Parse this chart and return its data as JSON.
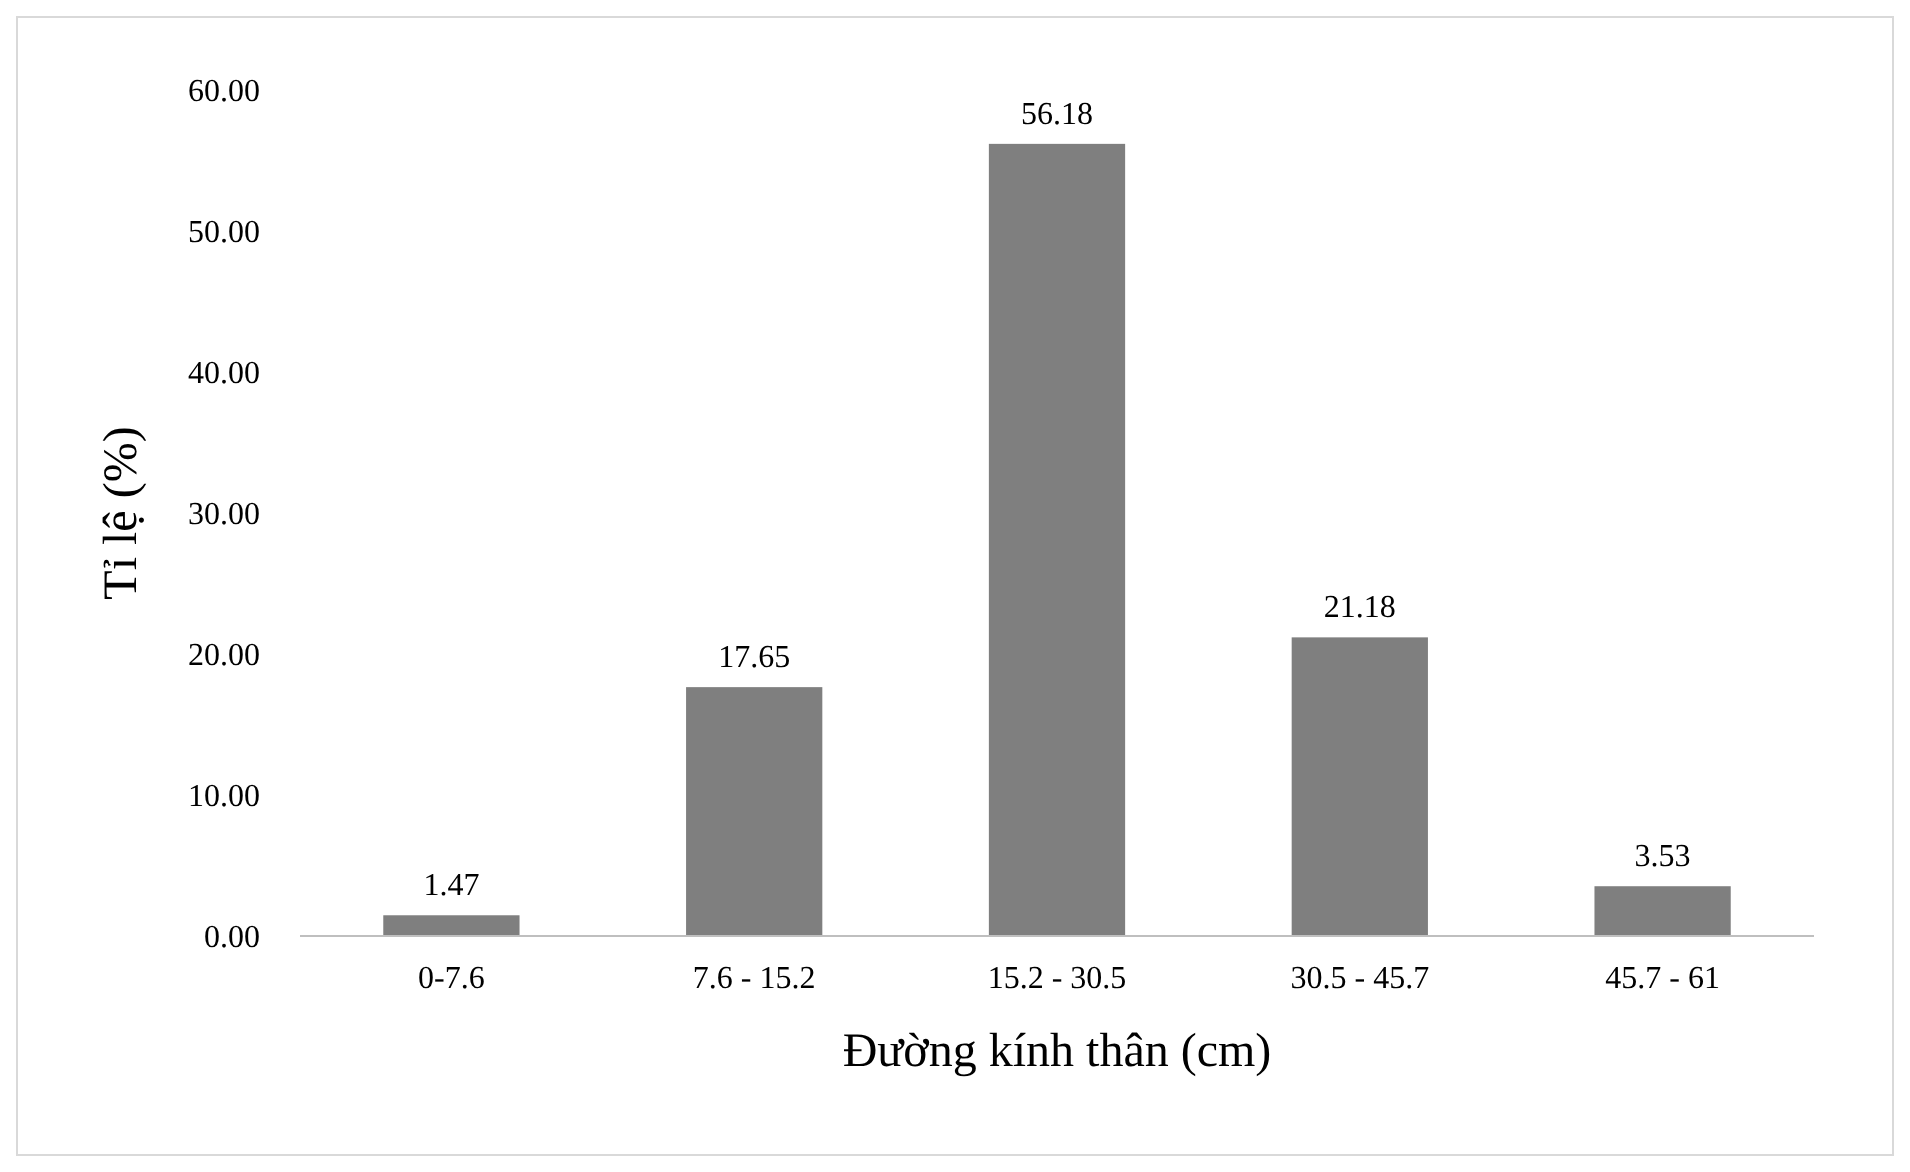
{
  "chart_data": {
    "type": "bar",
    "xlabel": "Đường kính thân (cm)",
    "ylabel": "Tỉ lệ (%)",
    "categories": [
      "0-7.6",
      "7.6 - 15.2",
      "15.2 - 30.5",
      "30.5 - 45.7",
      "45.7 - 61"
    ],
    "values": [
      1.47,
      17.65,
      56.18,
      21.18,
      3.53
    ],
    "color": "#7f7f7f",
    "data_labels": true,
    "ylim": [
      0,
      60
    ],
    "yticks": [
      {
        "value": 0,
        "label": "0.00"
      },
      {
        "value": 10,
        "label": "10.00"
      },
      {
        "value": 20,
        "label": "20.00"
      },
      {
        "value": 30,
        "label": "30.00"
      },
      {
        "value": 40,
        "label": "40.00"
      },
      {
        "value": 50,
        "label": "50.00"
      },
      {
        "value": 60,
        "label": "60.00"
      }
    ],
    "grid": false
  }
}
